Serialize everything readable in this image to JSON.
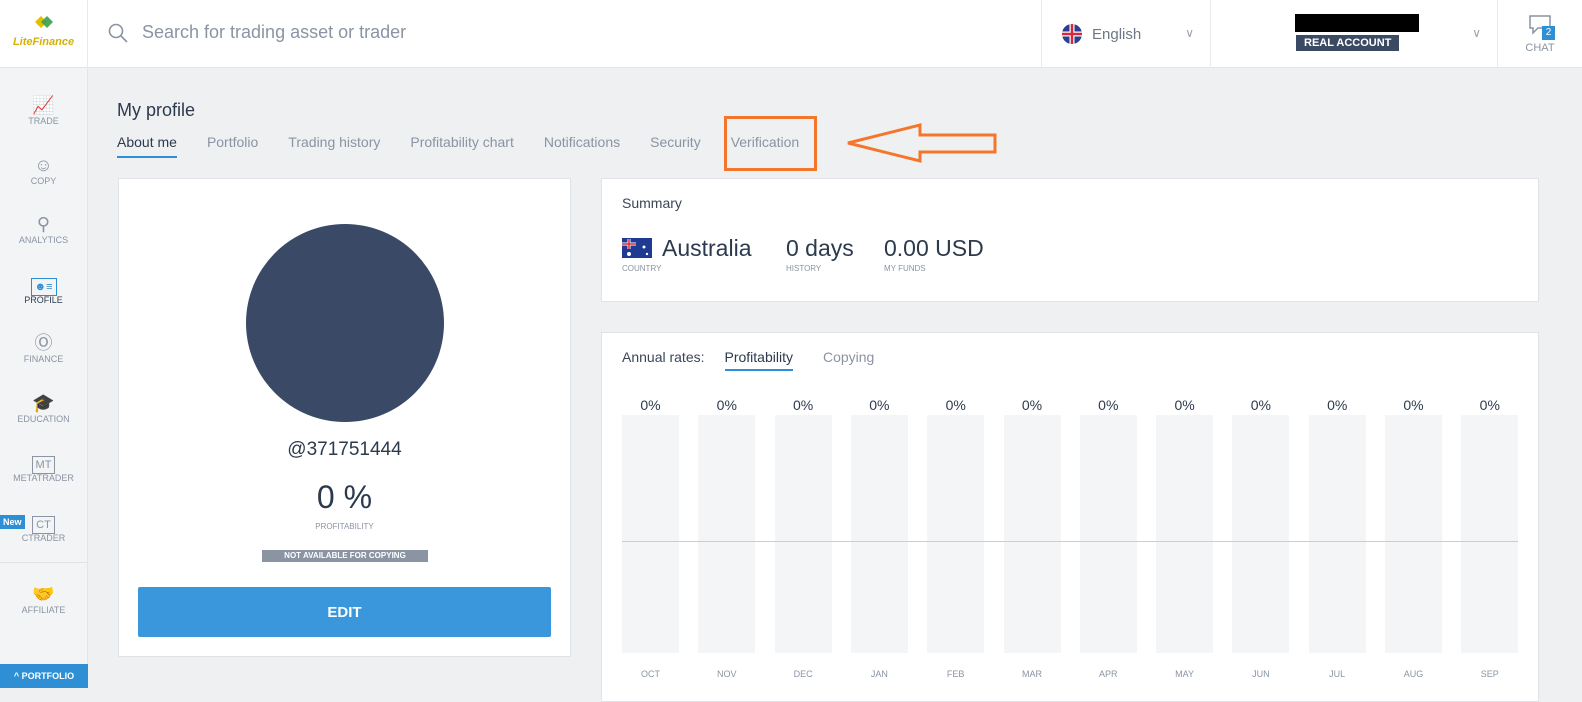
{
  "header": {
    "logo": "LiteFinance",
    "search_placeholder": "Search for trading asset or trader",
    "language": "English",
    "account_badge": "REAL ACCOUNT",
    "chat_label": "CHAT",
    "chat_count": "2"
  },
  "sidebar": {
    "items": [
      {
        "label": "TRADE",
        "icon": "chart-icon"
      },
      {
        "label": "COPY",
        "icon": "user-icon"
      },
      {
        "label": "ANALYTICS",
        "icon": "analytics-icon"
      },
      {
        "label": "PROFILE",
        "icon": "profile-card-icon",
        "active": true
      },
      {
        "label": "FINANCE",
        "icon": "dollar-icon"
      },
      {
        "label": "EDUCATION",
        "icon": "graduation-cap-icon"
      },
      {
        "label": "METATRADER",
        "icon": "MT"
      },
      {
        "label": "CTRADER",
        "icon": "CT",
        "badge": "New"
      },
      {
        "label": "AFFILIATE",
        "icon": "handshake-icon"
      }
    ],
    "portfolio": "PORTFOLIO"
  },
  "page": {
    "title": "My profile",
    "tabs": [
      "About me",
      "Portfolio",
      "Trading history",
      "Profitability chart",
      "Notifications",
      "Security",
      "Verification"
    ],
    "active_tab": "About me"
  },
  "profile": {
    "username": "@371751444",
    "profitability": "0 %",
    "profitability_label": "PROFITABILITY",
    "copy_status": "NOT AVAILABLE FOR COPYING",
    "edit": "EDIT"
  },
  "summary": {
    "title": "Summary",
    "country": "Australia",
    "country_label": "COUNTRY",
    "history": "0 days",
    "history_label": "HISTORY",
    "funds": "0.00 USD",
    "funds_label": "MY FUNDS"
  },
  "rates": {
    "label": "Annual rates:",
    "tabs": [
      "Profitability",
      "Copying"
    ],
    "active": "Profitability"
  },
  "chart_data": {
    "type": "bar",
    "categories": [
      "OCT",
      "NOV",
      "DEC",
      "JAN",
      "FEB",
      "MAR",
      "APR",
      "MAY",
      "JUN",
      "JUL",
      "AUG",
      "SEP"
    ],
    "values": [
      0,
      0,
      0,
      0,
      0,
      0,
      0,
      0,
      0,
      0,
      0,
      0
    ],
    "labels": [
      "0%",
      "0%",
      "0%",
      "0%",
      "0%",
      "0%",
      "0%",
      "0%",
      "0%",
      "0%",
      "0%",
      "0%"
    ]
  },
  "colors": {
    "accent": "#2f8fd5",
    "annotation": "#f5762a",
    "avatar": "#3a4a66"
  }
}
